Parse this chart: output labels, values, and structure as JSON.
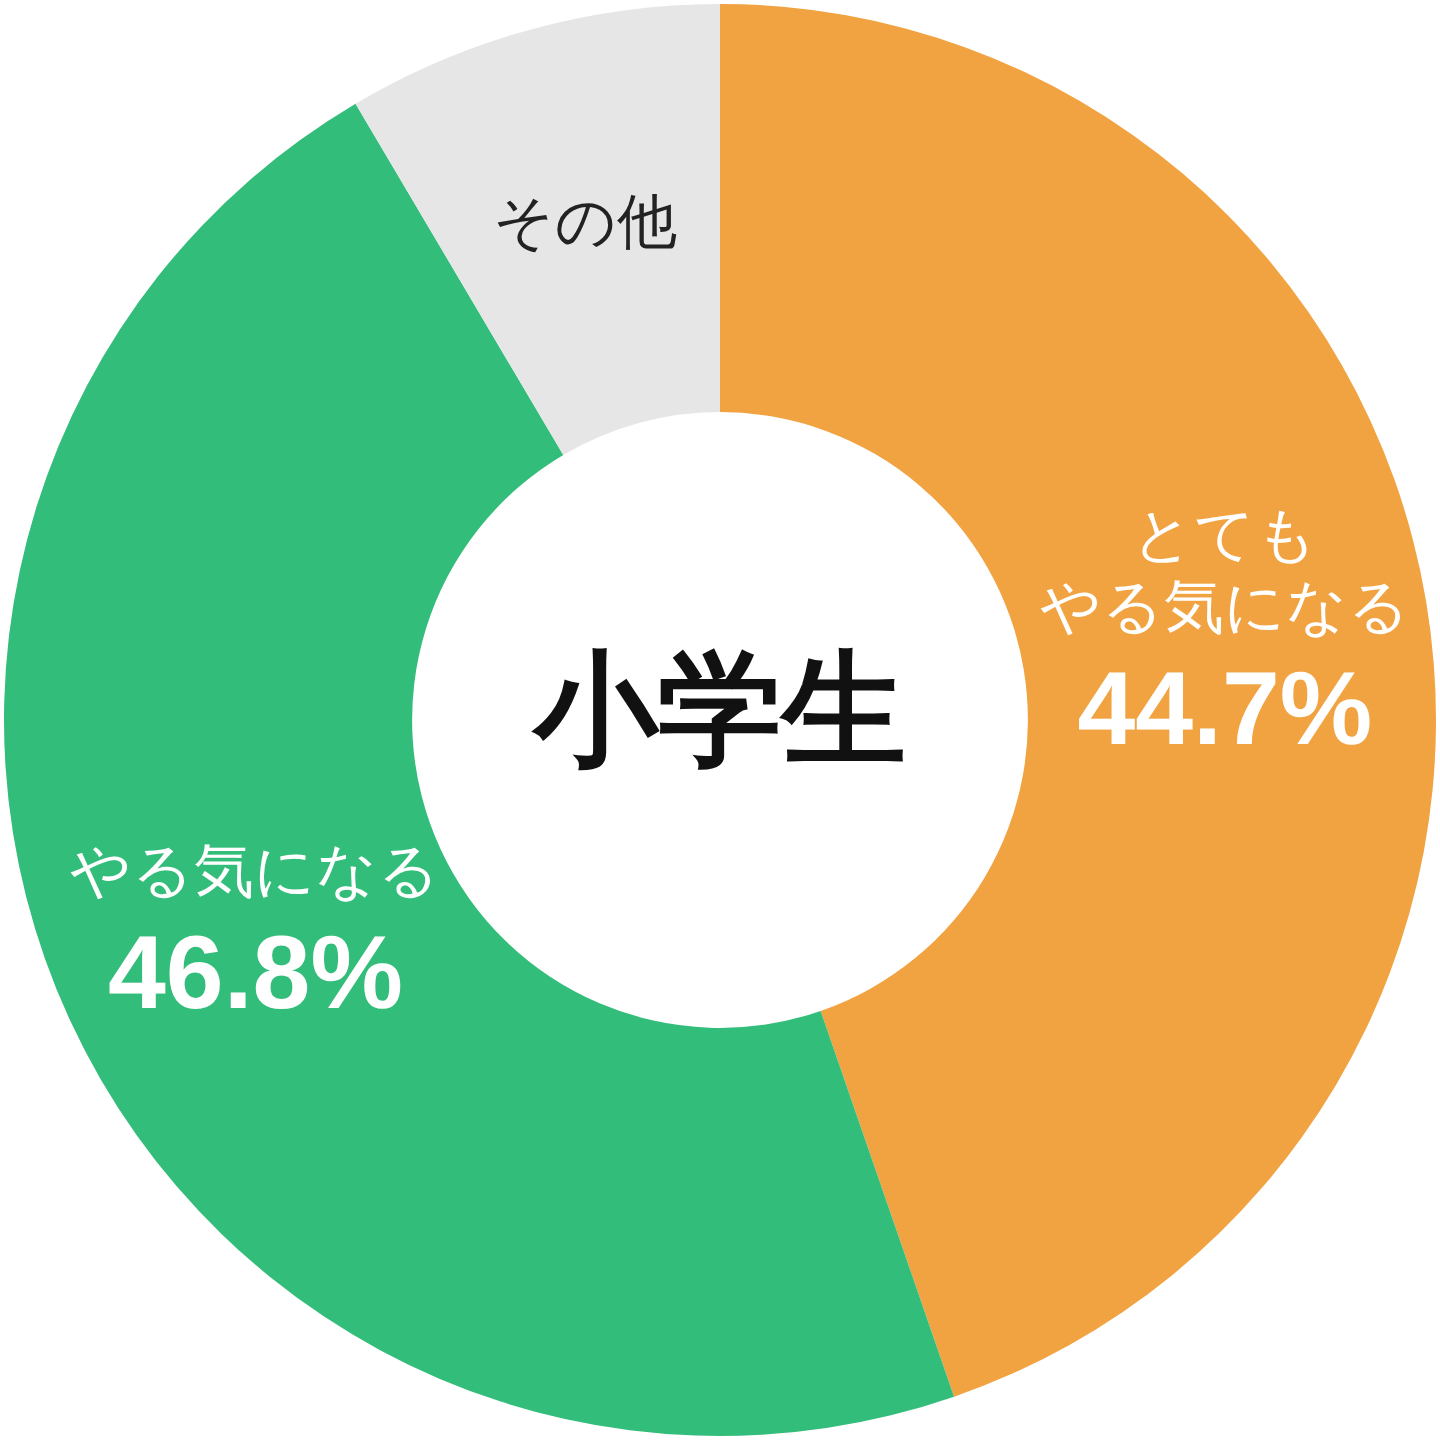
{
  "chart_data": {
    "type": "donut",
    "title": "小学生",
    "categories": [
      "とてもやる気になる",
      "やる気になる",
      "その他"
    ],
    "values": [
      44.7,
      46.8,
      8.5
    ],
    "colors": [
      "#f2a341",
      "#33bd7a",
      "#e6e6e6"
    ],
    "value_labels": [
      "44.7%",
      "46.8%",
      null
    ],
    "legend": false
  }
}
